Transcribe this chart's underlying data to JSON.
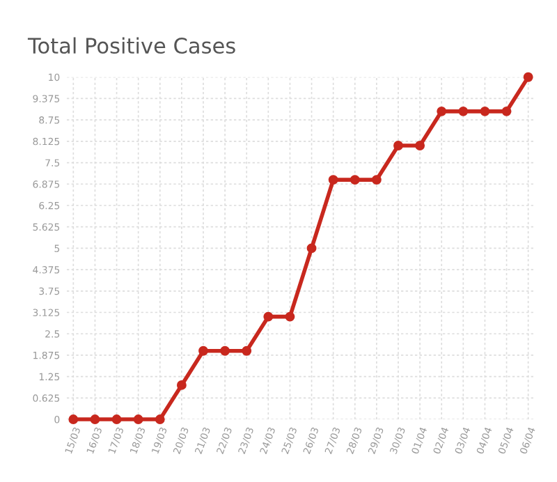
{
  "chart_data": {
    "type": "line",
    "title": "Total Positive Cases",
    "categories": [
      "15/03",
      "16/03",
      "17/03",
      "18/03",
      "19/03",
      "20/03",
      "21/03",
      "22/03",
      "23/03",
      "24/03",
      "25/03",
      "26/03",
      "27/03",
      "28/03",
      "29/03",
      "30/03",
      "01/04",
      "02/04",
      "03/04",
      "04/04",
      "05/04",
      "06/04"
    ],
    "series": [
      {
        "color": "#c8281e",
        "values": [
          0,
          0,
          0,
          0,
          0,
          1,
          2,
          2,
          2,
          3,
          3,
          5,
          7,
          7,
          7,
          8,
          8,
          9,
          9,
          9,
          9,
          10
        ]
      }
    ],
    "ylim": [
      0,
      10
    ],
    "yticks": [
      0,
      0.625,
      1.25,
      1.875,
      2.5,
      3.125,
      3.75,
      4.375,
      5,
      5.625,
      6.25,
      6.875,
      7.5,
      8.125,
      8.75,
      9.375,
      10
    ],
    "grid": true,
    "marker": "circle",
    "line_style": "solid"
  }
}
